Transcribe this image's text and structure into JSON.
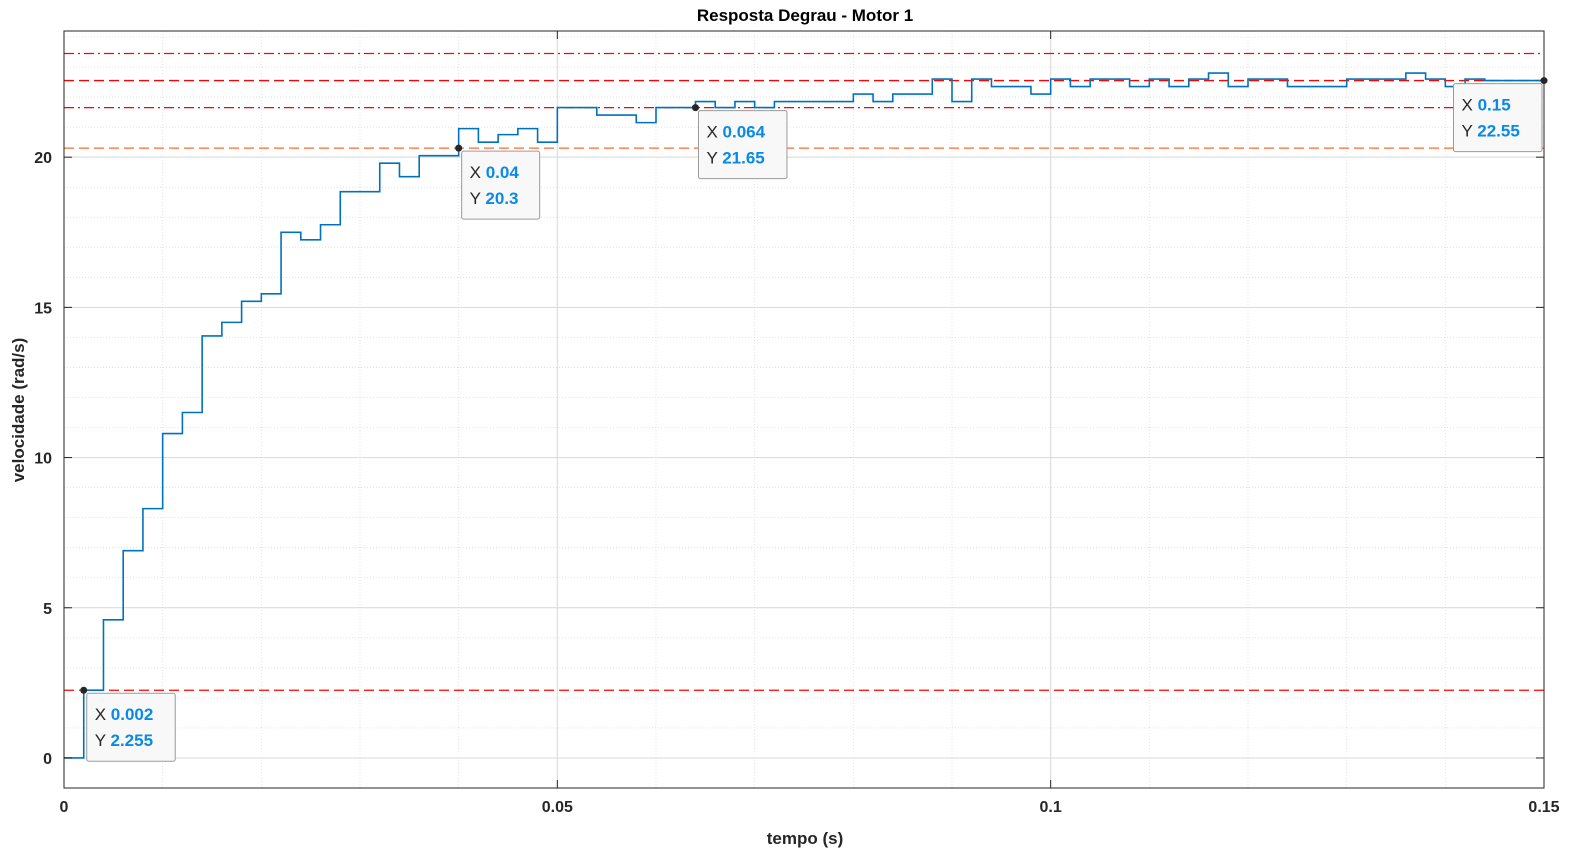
{
  "chart_data": {
    "type": "line",
    "title": "Resposta Degrau - Motor 1",
    "xlabel": "tempo (s)",
    "ylabel": "velocidade (rad/s)",
    "xlim": [
      0,
      0.15
    ],
    "ylim": [
      -1,
      24.2
    ],
    "grid": "major and minor",
    "x_ticks": [
      0,
      0.05,
      0.1,
      0.15
    ],
    "x_tick_labels": [
      "0",
      "0.05",
      "0.1",
      "0.15"
    ],
    "y_ticks": [
      0,
      5,
      10,
      15,
      20
    ],
    "y_tick_labels": [
      "0",
      "5",
      "10",
      "15",
      "20"
    ],
    "series": [
      {
        "color": "#0072bd",
        "style": "stairs",
        "x": [
          0,
          0.002,
          0.004,
          0.006,
          0.008,
          0.01,
          0.012,
          0.014,
          0.016,
          0.018,
          0.02,
          0.022,
          0.024,
          0.026,
          0.028,
          0.03,
          0.032,
          0.034,
          0.036,
          0.038,
          0.04,
          0.042,
          0.044,
          0.046,
          0.048,
          0.05,
          0.052,
          0.054,
          0.056,
          0.058,
          0.06,
          0.062,
          0.064,
          0.066,
          0.068,
          0.07,
          0.072,
          0.074,
          0.076,
          0.078,
          0.08,
          0.082,
          0.084,
          0.086,
          0.088,
          0.09,
          0.092,
          0.094,
          0.096,
          0.098,
          0.1,
          0.102,
          0.104,
          0.106,
          0.108,
          0.11,
          0.112,
          0.114,
          0.116,
          0.118,
          0.12,
          0.122,
          0.124,
          0.126,
          0.128,
          0.13,
          0.132,
          0.134,
          0.136,
          0.138,
          0.14,
          0.142,
          0.144,
          0.146,
          0.148,
          0.15
        ],
        "y": [
          0,
          2.255,
          4.6,
          6.9,
          8.3,
          10.8,
          11.5,
          14.05,
          14.5,
          15.2,
          15.45,
          17.5,
          17.25,
          17.75,
          18.85,
          18.85,
          19.8,
          19.35,
          20.05,
          20.05,
          20.95,
          20.5,
          20.75,
          20.95,
          20.5,
          21.65,
          21.65,
          21.4,
          21.4,
          21.15,
          21.65,
          21.65,
          21.85,
          21.65,
          21.85,
          21.65,
          21.85,
          21.85,
          21.85,
          21.85,
          22.1,
          21.85,
          22.1,
          22.1,
          22.6,
          21.85,
          22.6,
          22.35,
          22.35,
          22.1,
          22.6,
          22.35,
          22.6,
          22.6,
          22.35,
          22.6,
          22.35,
          22.6,
          22.8,
          22.35,
          22.6,
          22.6,
          22.35,
          22.35,
          22.35,
          22.6,
          22.6,
          22.6,
          22.8,
          22.6,
          22.35,
          22.6,
          22.55,
          22.55,
          22.55,
          22.55
        ]
      }
    ],
    "reference_lines": [
      {
        "y": 23.45,
        "color": "#ff0000",
        "style": "dashdot"
      },
      {
        "y": 22.55,
        "color": "#ff0000",
        "style": "dashed"
      },
      {
        "y": 21.65,
        "color": "#ff0000",
        "style": "dashdot"
      },
      {
        "y": 20.3,
        "color": "#ff6a2a",
        "style": "dashed"
      },
      {
        "y": 2.255,
        "color": "#ff0000",
        "style": "dashed"
      }
    ],
    "datatips": [
      {
        "x": 0.002,
        "y": 2.255,
        "x_text": "0.002",
        "y_text": "2.255",
        "placement": "bottom-right"
      },
      {
        "x": 0.04,
        "y": 20.3,
        "x_text": "0.04",
        "y_text": "20.3",
        "placement": "bottom-right"
      },
      {
        "x": 0.064,
        "y": 21.65,
        "x_text": "0.064",
        "y_text": "21.65",
        "placement": "bottom-right"
      },
      {
        "x": 0.15,
        "y": 22.55,
        "x_text": "0.15",
        "y_text": "22.55",
        "placement": "bottom-left"
      }
    ],
    "datatip_labels": {
      "x": "X",
      "y": "Y"
    }
  }
}
